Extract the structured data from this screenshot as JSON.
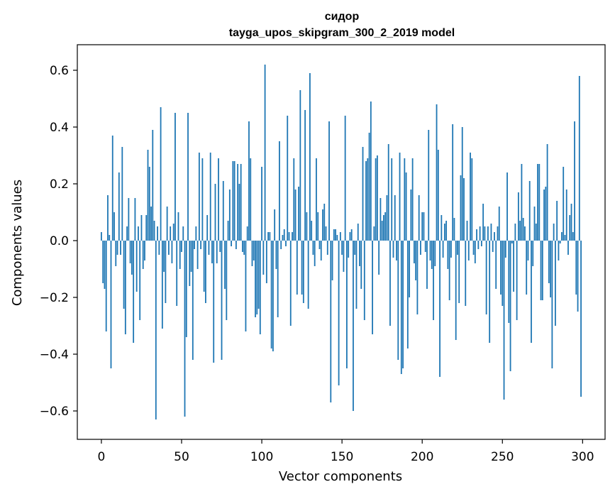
{
  "chart_data": {
    "type": "bar",
    "title_line1": "сидор",
    "title_line2": "tayga_upos_skipgram_300_2_2019 model",
    "xlabel": "Vector components",
    "ylabel": "Components values",
    "xlim": [
      -15,
      314
    ],
    "ylim": [
      -0.7,
      0.69
    ],
    "xticks": [
      0,
      50,
      100,
      150,
      200,
      250,
      300
    ],
    "xtick_labels": [
      "0",
      "50",
      "100",
      "150",
      "200",
      "250",
      "300"
    ],
    "yticks": [
      -0.6,
      -0.4,
      -0.2,
      0.0,
      0.2,
      0.4,
      0.6
    ],
    "ytick_labels": [
      "−0.6",
      "−0.4",
      "−0.2",
      "0.0",
      "0.2",
      "0.4",
      "0.6"
    ],
    "bar_color": "#1f77b4",
    "x": [
      0,
      1,
      2,
      3,
      4,
      5,
      6,
      7,
      8,
      9,
      10,
      11,
      12,
      13,
      14,
      15,
      16,
      17,
      18,
      19,
      20,
      21,
      22,
      23,
      24,
      25,
      26,
      27,
      28,
      29,
      30,
      31,
      32,
      33,
      34,
      35,
      36,
      37,
      38,
      39,
      40,
      41,
      42,
      43,
      44,
      45,
      46,
      47,
      48,
      49,
      50,
      51,
      52,
      53,
      54,
      55,
      56,
      57,
      58,
      59,
      60,
      61,
      62,
      63,
      64,
      65,
      66,
      67,
      68,
      69,
      70,
      71,
      72,
      73,
      74,
      75,
      76,
      77,
      78,
      79,
      80,
      81,
      82,
      83,
      84,
      85,
      86,
      87,
      88,
      89,
      90,
      91,
      92,
      93,
      94,
      95,
      96,
      97,
      98,
      99,
      100,
      101,
      102,
      103,
      104,
      105,
      106,
      107,
      108,
      109,
      110,
      111,
      112,
      113,
      114,
      115,
      116,
      117,
      118,
      119,
      120,
      121,
      122,
      123,
      124,
      125,
      126,
      127,
      128,
      129,
      130,
      131,
      132,
      133,
      134,
      135,
      136,
      137,
      138,
      139,
      140,
      141,
      142,
      143,
      144,
      145,
      146,
      147,
      148,
      149,
      150,
      151,
      152,
      153,
      154,
      155,
      156,
      157,
      158,
      159,
      160,
      161,
      162,
      163,
      164,
      165,
      166,
      167,
      168,
      169,
      170,
      171,
      172,
      173,
      174,
      175,
      176,
      177,
      178,
      179,
      180,
      181,
      182,
      183,
      184,
      185,
      186,
      187,
      188,
      189,
      190,
      191,
      192,
      193,
      194,
      195,
      196,
      197,
      198,
      199,
      200,
      201,
      202,
      203,
      204,
      205,
      206,
      207,
      208,
      209,
      210,
      211,
      212,
      213,
      214,
      215,
      216,
      217,
      218,
      219,
      220,
      221,
      222,
      223,
      224,
      225,
      226,
      227,
      228,
      229,
      230,
      231,
      232,
      233,
      234,
      235,
      236,
      237,
      238,
      239,
      240,
      241,
      242,
      243,
      244,
      245,
      246,
      247,
      248,
      249,
      250,
      251,
      252,
      253,
      254,
      255,
      256,
      257,
      258,
      259,
      260,
      261,
      262,
      263,
      264,
      265,
      266,
      267,
      268,
      269,
      270,
      271,
      272,
      273,
      274,
      275,
      276,
      277,
      278,
      279,
      280,
      281,
      282,
      283,
      284,
      285,
      286,
      287,
      288,
      289,
      290,
      291,
      292,
      293,
      294,
      295,
      296,
      297,
      298,
      299
    ],
    "values": [
      0.03,
      -0.15,
      -0.17,
      -0.32,
      0.16,
      0.02,
      -0.45,
      0.37,
      0.1,
      -0.09,
      -0.05,
      0.24,
      -0.05,
      0.33,
      -0.24,
      -0.33,
      0.05,
      0.15,
      -0.08,
      -0.12,
      -0.36,
      0.15,
      -0.18,
      0.05,
      -0.28,
      0.09,
      -0.1,
      -0.07,
      0.09,
      0.32,
      0.26,
      0.12,
      0.39,
      0.07,
      -0.63,
      0.05,
      -0.05,
      0.47,
      -0.31,
      -0.11,
      -0.22,
      0.12,
      -0.05,
      0.05,
      -0.08,
      0.06,
      0.45,
      -0.23,
      0.1,
      -0.1,
      -0.04,
      0.05,
      -0.62,
      -0.34,
      0.45,
      -0.16,
      -0.11,
      -0.42,
      -0.03,
      0.05,
      -0.1,
      0.31,
      -0.03,
      0.29,
      -0.18,
      -0.22,
      0.09,
      -0.05,
      0.31,
      -0.08,
      -0.43,
      0.2,
      -0.08,
      0.29,
      -0.04,
      -0.42,
      0.21,
      -0.17,
      -0.28,
      0.07,
      0.18,
      -0.02,
      0.28,
      0.28,
      -0.03,
      0.27,
      0.2,
      0.27,
      -0.04,
      -0.05,
      -0.32,
      0.05,
      0.42,
      0.29,
      -0.09,
      -0.07,
      -0.27,
      -0.26,
      -0.24,
      -0.33,
      0.26,
      -0.12,
      0.62,
      -0.15,
      0.03,
      0.03,
      -0.38,
      -0.39,
      0.11,
      -0.1,
      -0.27,
      0.35,
      -0.03,
      0.02,
      0.04,
      -0.02,
      0.44,
      0.03,
      -0.3,
      0.03,
      0.29,
      0.18,
      -0.19,
      0.19,
      0.53,
      -0.19,
      -0.22,
      0.46,
      0.1,
      -0.24,
      0.59,
      0.07,
      -0.05,
      -0.09,
      0.29,
      0.1,
      -0.03,
      -0.07,
      0.11,
      0.13,
      0.05,
      -0.05,
      0.42,
      -0.57,
      -0.14,
      0.04,
      0.04,
      0.02,
      -0.51,
      0.03,
      -0.05,
      -0.11,
      0.44,
      -0.45,
      -0.06,
      0.03,
      0.04,
      -0.6,
      -0.05,
      -0.24,
      0.06,
      -0.09,
      -0.17,
      0.33,
      -0.28,
      0.28,
      0.29,
      0.38,
      0.49,
      -0.33,
      0.05,
      0.29,
      0.3,
      -0.12,
      0.15,
      0.07,
      0.09,
      0.1,
      0.16,
      0.34,
      -0.3,
      0.29,
      -0.06,
      0.16,
      -0.07,
      -0.42,
      0.31,
      -0.47,
      -0.45,
      0.29,
      0.24,
      -0.38,
      -0.2,
      0.18,
      0.29,
      -0.08,
      -0.14,
      -0.26,
      0.16,
      -0.05,
      0.1,
      0.1,
      -0.04,
      -0.17,
      0.39,
      -0.07,
      -0.1,
      -0.28,
      -0.09,
      0.48,
      0.32,
      -0.48,
      0.09,
      -0.06,
      0.06,
      0.07,
      -0.1,
      -0.21,
      -0.06,
      0.41,
      0.08,
      -0.35,
      -0.05,
      -0.22,
      0.23,
      0.4,
      0.22,
      -0.23,
      0.07,
      -0.07,
      0.31,
      0.29,
      -0.05,
      -0.08,
      0.04,
      -0.03,
      0.05,
      -0.02,
      0.13,
      0.05,
      -0.26,
      0.05,
      -0.36,
      0.06,
      -0.04,
      0.03,
      -0.17,
      0.05,
      0.12,
      -0.19,
      -0.23,
      -0.56,
      -0.06,
      0.24,
      -0.29,
      -0.46,
      -0.01,
      -0.18,
      0.06,
      -0.28,
      0.17,
      0.07,
      0.27,
      0.08,
      0.05,
      -0.19,
      -0.07,
      0.21,
      -0.36,
      -0.09,
      0.12,
      0.06,
      0.27,
      0.27,
      -0.21,
      -0.21,
      0.18,
      0.19,
      0.34,
      -0.15,
      -0.2,
      -0.45,
      0.06,
      -0.3,
      0.14,
      -0.07,
      -0.01,
      0.03,
      0.26,
      0.02,
      0.18,
      -0.05,
      0.09,
      0.13,
      0.03,
      0.42,
      -0.19,
      -0.25,
      0.58,
      -0.55
    ]
  }
}
